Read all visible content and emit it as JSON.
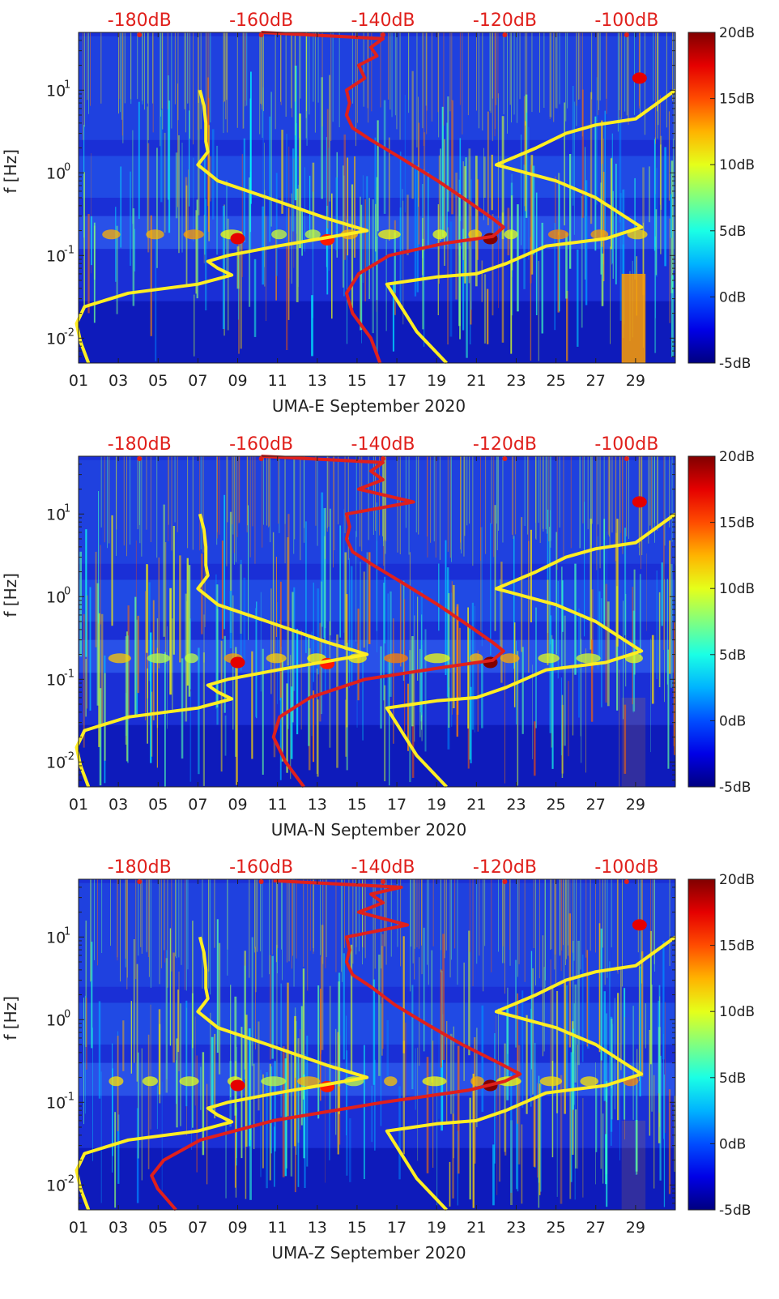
{
  "chart_data": [
    {
      "type": "heatmap",
      "station": "UMA-E",
      "xlabel": "UMA-E September 2020",
      "ylabel": "f [Hz]",
      "x_ticks": [
        "01",
        "03",
        "05",
        "07",
        "09",
        "11",
        "13",
        "15",
        "17",
        "19",
        "21",
        "23",
        "25",
        "27",
        "29"
      ],
      "x_range_days": [
        1,
        31
      ],
      "y_scale": "log",
      "y_range_hz": [
        0.005,
        50
      ],
      "y_ticks": [
        {
          "base": "10",
          "exp": "-2",
          "value": 0.01
        },
        {
          "base": "10",
          "exp": "-1",
          "value": 0.1
        },
        {
          "base": "10",
          "exp": "0",
          "value": 1
        },
        {
          "base": "10",
          "exp": "1",
          "value": 10
        }
      ],
      "top_axis_ticks": [
        "-180dB",
        "-160dB",
        "-140dB",
        "-120dB",
        "-100dB"
      ],
      "top_axis_range_db": [
        -190,
        -92
      ],
      "colorbar": {
        "ticks": [
          "20dB",
          "15dB",
          "10dB",
          "5dB",
          "0dB",
          "-5dB"
        ],
        "range_db": [
          -5,
          20
        ],
        "colormap": "jet"
      },
      "yellow_curve": {
        "color": "#ffee22",
        "points": [
          [
            1.5,
            0.005
          ],
          [
            1.1,
            0.009
          ],
          [
            0.9,
            0.015
          ],
          [
            1.3,
            0.024
          ],
          [
            3.5,
            0.035
          ],
          [
            7.0,
            0.045
          ],
          [
            8.7,
            0.058
          ],
          [
            8.0,
            0.07
          ],
          [
            7.5,
            0.085
          ],
          [
            8.5,
            0.1
          ],
          [
            11.0,
            0.13
          ],
          [
            15.5,
            0.2
          ],
          [
            13.5,
            0.28
          ],
          [
            10.5,
            0.5
          ],
          [
            8.0,
            0.8
          ],
          [
            7.0,
            1.25
          ],
          [
            7.5,
            1.8
          ],
          [
            7.4,
            2.4
          ],
          [
            7.4,
            4.0
          ],
          [
            7.3,
            6.5
          ],
          [
            7.1,
            10
          ],
          null,
          [
            19.5,
            0.005
          ],
          [
            18.0,
            0.012
          ],
          [
            16.5,
            0.045
          ],
          [
            19.0,
            0.055
          ],
          [
            21.0,
            0.06
          ],
          [
            22.5,
            0.08
          ],
          [
            24.5,
            0.13
          ],
          [
            27.5,
            0.16
          ],
          [
            29.3,
            0.22
          ],
          [
            27.0,
            0.5
          ],
          [
            25.0,
            0.8
          ],
          [
            23.5,
            1.0
          ],
          [
            22.0,
            1.25
          ],
          [
            24.0,
            2.0
          ],
          [
            25.5,
            3.0
          ],
          [
            27.0,
            3.8
          ],
          [
            29.0,
            4.5
          ],
          [
            31.0,
            10
          ]
        ]
      },
      "red_curve": {
        "color": "#e0201c",
        "points_db": [
          [
            -140.5,
            0.005
          ],
          [
            -142,
            0.01
          ],
          [
            -145,
            0.02
          ],
          [
            -146,
            0.035
          ],
          [
            -144,
            0.06
          ],
          [
            -139,
            0.1
          ],
          [
            -130,
            0.14
          ],
          [
            -122,
            0.17
          ],
          [
            -120.2,
            0.22
          ],
          [
            -122,
            0.28
          ],
          [
            -126,
            0.45
          ],
          [
            -131,
            0.8
          ],
          [
            -137,
            1.5
          ],
          [
            -142,
            2.5
          ],
          [
            -145,
            3.5
          ],
          [
            -146,
            5
          ],
          [
            -145.5,
            7
          ],
          [
            -146,
            10
          ],
          [
            -143,
            14
          ],
          [
            -144,
            20
          ],
          [
            -141,
            26
          ],
          [
            -142,
            33
          ],
          [
            -140,
            42
          ],
          [
            -160,
            50
          ]
        ]
      }
    },
    {
      "type": "heatmap",
      "station": "UMA-N",
      "xlabel": "UMA-N September 2020",
      "ylabel": "f [Hz]",
      "x_ticks": [
        "01",
        "03",
        "05",
        "07",
        "09",
        "11",
        "13",
        "15",
        "17",
        "19",
        "21",
        "23",
        "25",
        "27",
        "29"
      ],
      "x_range_days": [
        1,
        31
      ],
      "y_scale": "log",
      "y_range_hz": [
        0.005,
        50
      ],
      "y_ticks": [
        {
          "base": "10",
          "exp": "-2",
          "value": 0.01
        },
        {
          "base": "10",
          "exp": "-1",
          "value": 0.1
        },
        {
          "base": "10",
          "exp": "0",
          "value": 1
        },
        {
          "base": "10",
          "exp": "1",
          "value": 10
        }
      ],
      "top_axis_ticks": [
        "-180dB",
        "-160dB",
        "-140dB",
        "-120dB",
        "-100dB"
      ],
      "top_axis_range_db": [
        -190,
        -92
      ],
      "colorbar": {
        "ticks": [
          "20dB",
          "15dB",
          "10dB",
          "5dB",
          "0dB",
          "-5dB"
        ],
        "range_db": [
          -5,
          20
        ],
        "colormap": "jet"
      },
      "yellow_curve": {
        "color": "#ffee22",
        "points": [
          [
            1.5,
            0.005
          ],
          [
            1.1,
            0.009
          ],
          [
            0.9,
            0.015
          ],
          [
            1.3,
            0.024
          ],
          [
            3.5,
            0.035
          ],
          [
            7.0,
            0.045
          ],
          [
            8.7,
            0.058
          ],
          [
            8.0,
            0.07
          ],
          [
            7.5,
            0.085
          ],
          [
            8.5,
            0.1
          ],
          [
            11.0,
            0.13
          ],
          [
            15.5,
            0.2
          ],
          [
            13.5,
            0.28
          ],
          [
            10.5,
            0.5
          ],
          [
            8.0,
            0.8
          ],
          [
            7.0,
            1.25
          ],
          [
            7.5,
            1.8
          ],
          [
            7.4,
            2.4
          ],
          [
            7.4,
            4.0
          ],
          [
            7.3,
            6.5
          ],
          [
            7.1,
            10
          ],
          null,
          [
            19.5,
            0.005
          ],
          [
            18.0,
            0.012
          ],
          [
            16.5,
            0.045
          ],
          [
            19.0,
            0.055
          ],
          [
            21.0,
            0.06
          ],
          [
            22.5,
            0.08
          ],
          [
            24.5,
            0.13
          ],
          [
            27.5,
            0.16
          ],
          [
            29.3,
            0.22
          ],
          [
            27.0,
            0.5
          ],
          [
            25.0,
            0.8
          ],
          [
            23.5,
            1.0
          ],
          [
            22.0,
            1.25
          ],
          [
            24.0,
            2.0
          ],
          [
            25.5,
            3.0
          ],
          [
            27.0,
            3.8
          ],
          [
            29.0,
            4.5
          ],
          [
            31.0,
            10
          ]
        ]
      },
      "red_curve": {
        "color": "#e0201c",
        "points_db": [
          [
            -153,
            0.005
          ],
          [
            -156,
            0.01
          ],
          [
            -158,
            0.02
          ],
          [
            -157,
            0.035
          ],
          [
            -152,
            0.06
          ],
          [
            -143,
            0.1
          ],
          [
            -130,
            0.14
          ],
          [
            -122,
            0.17
          ],
          [
            -120.2,
            0.22
          ],
          [
            -122,
            0.28
          ],
          [
            -126,
            0.45
          ],
          [
            -131,
            0.8
          ],
          [
            -137,
            1.5
          ],
          [
            -142,
            2.5
          ],
          [
            -145,
            3.5
          ],
          [
            -146,
            5
          ],
          [
            -145.5,
            7
          ],
          [
            -146,
            10
          ],
          [
            -135,
            14
          ],
          [
            -144,
            20
          ],
          [
            -140,
            26
          ],
          [
            -142,
            33
          ],
          [
            -140,
            42
          ],
          [
            -160,
            50
          ]
        ]
      }
    },
    {
      "type": "heatmap",
      "station": "UMA-Z",
      "xlabel": "UMA-Z September 2020",
      "ylabel": "f [Hz]",
      "x_ticks": [
        "01",
        "03",
        "05",
        "07",
        "09",
        "11",
        "13",
        "15",
        "17",
        "19",
        "21",
        "23",
        "25",
        "27",
        "29"
      ],
      "x_range_days": [
        1,
        31
      ],
      "y_scale": "log",
      "y_range_hz": [
        0.005,
        50
      ],
      "y_ticks": [
        {
          "base": "10",
          "exp": "-2",
          "value": 0.01
        },
        {
          "base": "10",
          "exp": "-1",
          "value": 0.1
        },
        {
          "base": "10",
          "exp": "0",
          "value": 1
        },
        {
          "base": "10",
          "exp": "1",
          "value": 10
        }
      ],
      "top_axis_ticks": [
        "-180dB",
        "-160dB",
        "-140dB",
        "-120dB",
        "-100dB"
      ],
      "top_axis_range_db": [
        -190,
        -92
      ],
      "colorbar": {
        "ticks": [
          "20dB",
          "15dB",
          "10dB",
          "5dB",
          "0dB",
          "-5dB"
        ],
        "range_db": [
          -5,
          20
        ],
        "colormap": "jet"
      },
      "yellow_curve": {
        "color": "#ffee22",
        "points": [
          [
            1.5,
            0.005
          ],
          [
            1.1,
            0.009
          ],
          [
            0.9,
            0.015
          ],
          [
            1.3,
            0.024
          ],
          [
            3.5,
            0.035
          ],
          [
            7.0,
            0.045
          ],
          [
            8.7,
            0.058
          ],
          [
            8.0,
            0.07
          ],
          [
            7.5,
            0.085
          ],
          [
            8.5,
            0.1
          ],
          [
            11.0,
            0.13
          ],
          [
            15.5,
            0.2
          ],
          [
            13.5,
            0.28
          ],
          [
            10.5,
            0.5
          ],
          [
            8.0,
            0.8
          ],
          [
            7.0,
            1.25
          ],
          [
            7.5,
            1.8
          ],
          [
            7.4,
            2.4
          ],
          [
            7.4,
            4.0
          ],
          [
            7.3,
            6.5
          ],
          [
            7.1,
            10
          ],
          null,
          [
            19.5,
            0.005
          ],
          [
            18.0,
            0.012
          ],
          [
            16.5,
            0.045
          ],
          [
            19.0,
            0.055
          ],
          [
            21.0,
            0.06
          ],
          [
            22.5,
            0.08
          ],
          [
            24.5,
            0.13
          ],
          [
            27.5,
            0.16
          ],
          [
            29.3,
            0.22
          ],
          [
            27.0,
            0.5
          ],
          [
            25.0,
            0.8
          ],
          [
            23.5,
            1.0
          ],
          [
            22.0,
            1.25
          ],
          [
            24.0,
            2.0
          ],
          [
            25.5,
            3.0
          ],
          [
            27.0,
            3.8
          ],
          [
            29.0,
            4.5
          ],
          [
            31.0,
            10
          ]
        ]
      },
      "red_curve": {
        "color": "#e0201c",
        "points_db": [
          [
            -174,
            0.005
          ],
          [
            -177,
            0.009
          ],
          [
            -178,
            0.013
          ],
          [
            -176,
            0.02
          ],
          [
            -170,
            0.035
          ],
          [
            -158,
            0.06
          ],
          [
            -140,
            0.1
          ],
          [
            -126,
            0.14
          ],
          [
            -120,
            0.18
          ],
          [
            -117.5,
            0.22
          ],
          [
            -121,
            0.3
          ],
          [
            -127,
            0.5
          ],
          [
            -133,
            0.9
          ],
          [
            -138,
            1.5
          ],
          [
            -142,
            2.5
          ],
          [
            -145,
            3.5
          ],
          [
            -146,
            5
          ],
          [
            -145.5,
            7
          ],
          [
            -146,
            10
          ],
          [
            -136,
            14
          ],
          [
            -144,
            20
          ],
          [
            -140,
            26
          ],
          [
            -142,
            33
          ],
          [
            -137,
            40
          ],
          [
            -158,
            48
          ]
        ]
      }
    }
  ]
}
